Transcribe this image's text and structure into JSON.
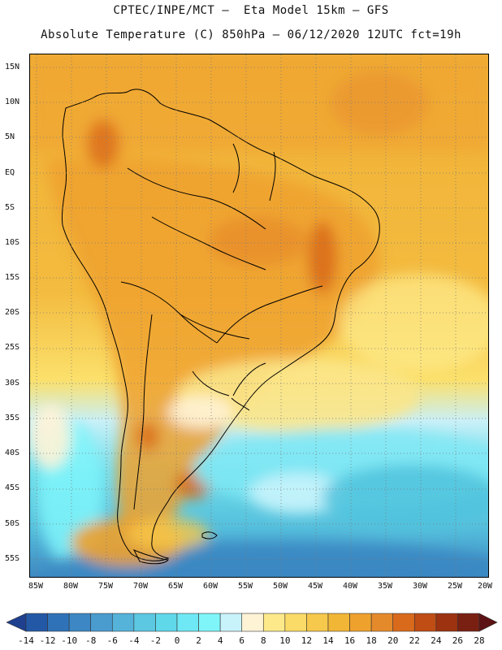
{
  "title": {
    "line1": "CPTEC/INPE/MCT –  Eta Model 15km – GFS",
    "line2": "Absolute Temperature (C) 850hPa – 06/12/2020 12UTC fct=19h"
  },
  "map": {
    "lat_labels": [
      "15N",
      "10N",
      "5N",
      "EQ",
      "5S",
      "10S",
      "15S",
      "20S",
      "25S",
      "30S",
      "35S",
      "40S",
      "45S",
      "50S",
      "55S"
    ],
    "lon_labels": [
      "85W",
      "80W",
      "75W",
      "70W",
      "65W",
      "60W",
      "55W",
      "50W",
      "45W",
      "40W",
      "35W",
      "30W",
      "25W",
      "20W"
    ],
    "lon_range": [
      -85,
      -20
    ],
    "lat_range": [
      -57,
      17
    ]
  },
  "colorbar": {
    "labels": [
      "-14",
      "-12",
      "-10",
      "-8",
      "-6",
      "-4",
      "-2",
      "0",
      "2",
      "4",
      "6",
      "8",
      "10",
      "12",
      "14",
      "16",
      "18",
      "20",
      "22",
      "24",
      "26",
      "28"
    ],
    "colors": [
      "#1f3f8f",
      "#2358a6",
      "#2f72b8",
      "#3c87c4",
      "#4a9ccf",
      "#55b3d9",
      "#5cc8e2",
      "#5fd8ea",
      "#6ee8f4",
      "#7ff5fa",
      "#c9f3fb",
      "#fff3d6",
      "#fde98a",
      "#fbdb67",
      "#f6c84b",
      "#f2b636",
      "#eea12d",
      "#e58a2b",
      "#d96a1c",
      "#c04d14",
      "#9c3210",
      "#7a2012",
      "#5c1214"
    ]
  }
}
